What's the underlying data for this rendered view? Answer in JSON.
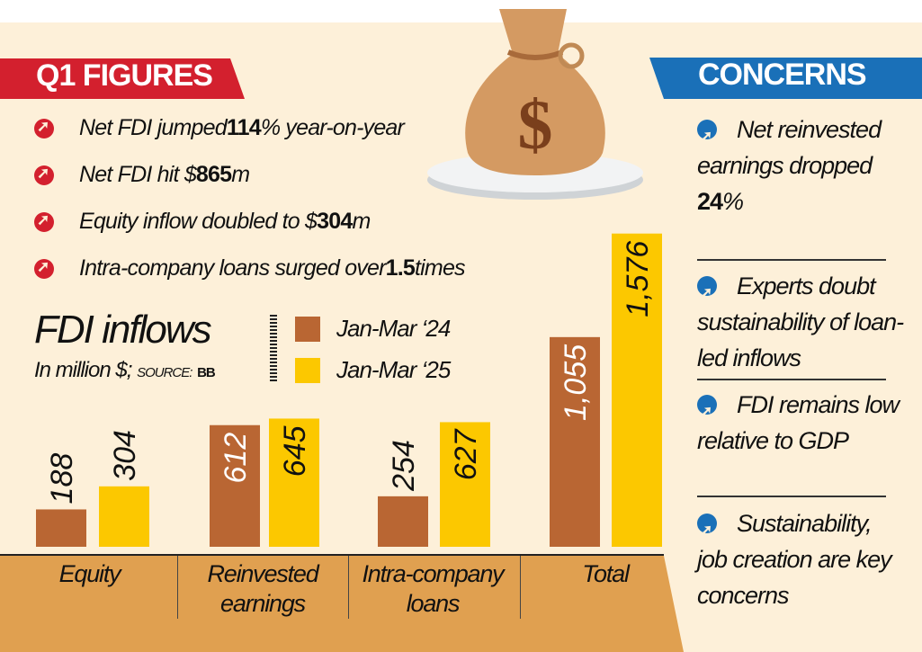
{
  "q1_header": "Q1 FIGURES",
  "bullets": [
    {
      "pre": "Net FDI jumped ",
      "bold": "114",
      "post": "% year-on-year"
    },
    {
      "pre": "Net FDI hit $",
      "bold": "865",
      "post": "m"
    },
    {
      "pre": "Equity inflow doubled to $",
      "bold": "304",
      "post": "m"
    },
    {
      "pre": "Intra-company loans surged over ",
      "bold": "1.5",
      "post": " times"
    }
  ],
  "concerns_header": "CONCERNS",
  "concerns": [
    {
      "text": "Net reinvested earnings dropped ",
      "bold": "24",
      "post": "%"
    },
    {
      "text": "Experts doubt sustainability of loan-led inflows"
    },
    {
      "text": "FDI remains low relative to GDP"
    },
    {
      "text": "Sustainability, job creation are key concerns"
    }
  ],
  "colors": {
    "red": "#d3202e",
    "blue": "#1a70b8",
    "series24": "#b96633",
    "series25": "#fcc800",
    "band": "#e0a050",
    "bg": "#fdf0d9"
  },
  "chart_data": {
    "type": "bar",
    "title": "FDI inflows",
    "subtitle": "In million $;",
    "source_label": "SOURCE:",
    "source": "BB",
    "categories": [
      "Equity",
      "Reinvested earnings",
      "Intra-company loans",
      "Total"
    ],
    "series": [
      {
        "name": "Jan-Mar ‘24",
        "values": [
          188,
          612,
          254,
          1055
        ],
        "labels": [
          "188",
          "612",
          "254",
          "1,055"
        ]
      },
      {
        "name": "Jan-Mar ‘25",
        "values": [
          304,
          645,
          627,
          1576
        ],
        "labels": [
          "304",
          "645",
          "627",
          "1,576"
        ]
      }
    ]
  }
}
